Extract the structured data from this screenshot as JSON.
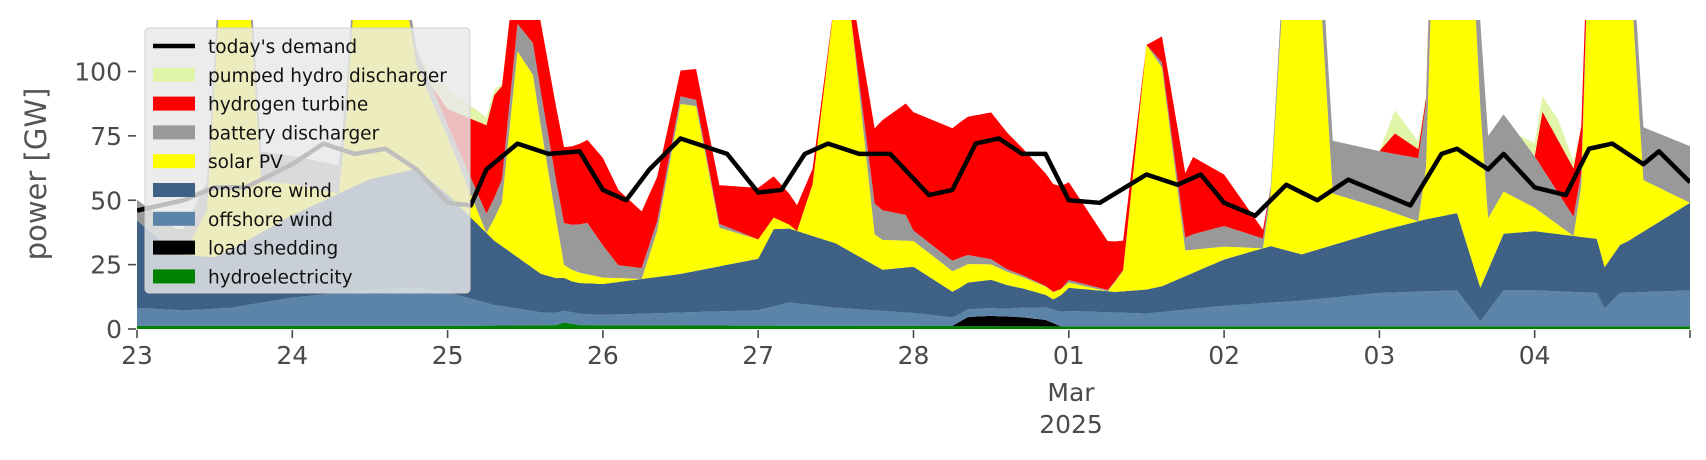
{
  "chart_data": {
    "type": "area",
    "ylabel": "power [GW]",
    "ylim": [
      0,
      120
    ],
    "yticks": [
      0,
      25,
      50,
      75,
      100
    ],
    "x_range_days": [
      "2025-02-23",
      "2025-03-05"
    ],
    "xticks": [
      {
        "day": 0,
        "label": "23"
      },
      {
        "day": 1,
        "label": "24"
      },
      {
        "day": 2,
        "label": "25"
      },
      {
        "day": 3,
        "label": "26"
      },
      {
        "day": 4,
        "label": "27"
      },
      {
        "day": 5,
        "label": "28"
      },
      {
        "day": 6,
        "label": "01"
      },
      {
        "day": 7,
        "label": "02"
      },
      {
        "day": 8,
        "label": "03"
      },
      {
        "day": 9,
        "label": "04"
      },
      {
        "day": 10,
        "label": ""
      }
    ],
    "xlabel_month": "Mar",
    "xlabel_year": "2025",
    "grid": false,
    "legend_position": "top-left",
    "series": [
      {
        "name": "hydroelectricity",
        "color": "#008000",
        "points": [
          [
            0,
            1.2
          ],
          [
            2,
            1.2
          ],
          [
            2.7,
            1.5
          ],
          [
            2.75,
            2.5
          ],
          [
            2.85,
            1.5
          ],
          [
            4,
            1.3
          ],
          [
            5,
            1.2
          ],
          [
            6,
            1.0
          ],
          [
            8,
            1.0
          ],
          [
            10,
            1.0
          ]
        ]
      },
      {
        "name": "load shedding",
        "color": "#000000",
        "points": [
          [
            0,
            0
          ],
          [
            5.25,
            0
          ],
          [
            5.35,
            3.5
          ],
          [
            5.5,
            4
          ],
          [
            5.7,
            3.5
          ],
          [
            5.85,
            2.5
          ],
          [
            5.95,
            0
          ],
          [
            10,
            0
          ]
        ]
      },
      {
        "name": "offshore wind",
        "color": "#5c84a8",
        "points": [
          [
            0,
            7
          ],
          [
            0.3,
            6
          ],
          [
            0.6,
            7
          ],
          [
            1,
            11
          ],
          [
            1.5,
            14
          ],
          [
            1.8,
            15
          ],
          [
            2,
            13
          ],
          [
            2.3,
            8
          ],
          [
            2.6,
            5
          ],
          [
            3,
            4
          ],
          [
            3.5,
            5
          ],
          [
            4,
            6
          ],
          [
            4.2,
            9
          ],
          [
            4.5,
            7
          ],
          [
            5,
            5
          ],
          [
            5.3,
            3
          ],
          [
            5.6,
            3
          ],
          [
            6,
            6
          ],
          [
            6.5,
            5
          ],
          [
            7,
            8
          ],
          [
            7.5,
            10
          ],
          [
            8,
            13
          ],
          [
            8.5,
            14
          ],
          [
            8.65,
            2
          ],
          [
            8.8,
            14
          ],
          [
            9,
            14
          ],
          [
            9.4,
            13
          ],
          [
            9.45,
            7
          ],
          [
            9.55,
            13
          ],
          [
            10,
            14
          ]
        ]
      },
      {
        "name": "onshore wind",
        "color": "#3e6185",
        "points": [
          [
            0,
            34
          ],
          [
            0.25,
            22
          ],
          [
            0.5,
            20
          ],
          [
            1,
            32
          ],
          [
            1.5,
            43
          ],
          [
            1.8,
            46
          ],
          [
            2,
            38
          ],
          [
            2.3,
            25
          ],
          [
            2.6,
            15
          ],
          [
            2.8,
            12
          ],
          [
            3,
            12
          ],
          [
            3.5,
            15
          ],
          [
            4,
            20
          ],
          [
            4.1,
            30
          ],
          [
            4.5,
            25
          ],
          [
            4.8,
            16
          ],
          [
            5,
            18
          ],
          [
            5.25,
            10
          ],
          [
            5.5,
            11
          ],
          [
            5.9,
            4
          ],
          [
            6,
            9
          ],
          [
            6.3,
            8
          ],
          [
            6.6,
            10
          ],
          [
            7,
            18
          ],
          [
            7.3,
            22
          ],
          [
            7.5,
            18
          ],
          [
            8,
            24
          ],
          [
            8.3,
            28
          ],
          [
            8.5,
            30
          ],
          [
            8.65,
            13
          ],
          [
            8.8,
            22
          ],
          [
            9,
            23
          ],
          [
            9.4,
            21
          ],
          [
            9.45,
            16
          ],
          [
            9.6,
            20
          ],
          [
            10,
            34
          ]
        ]
      },
      {
        "name": "solar PV",
        "color": "#ffff00",
        "points": [
          [
            0,
            0
          ],
          [
            0.3,
            0
          ],
          [
            0.45,
            18
          ],
          [
            0.55,
            118
          ],
          [
            0.7,
            118
          ],
          [
            0.8,
            20
          ],
          [
            1.3,
            0
          ],
          [
            1.35,
            30
          ],
          [
            1.45,
            120
          ],
          [
            1.6,
            118
          ],
          [
            1.8,
            40
          ],
          [
            2.25,
            0
          ],
          [
            2.35,
            17
          ],
          [
            2.45,
            80
          ],
          [
            2.55,
            75
          ],
          [
            2.75,
            5
          ],
          [
            3.25,
            0
          ],
          [
            3.35,
            18
          ],
          [
            3.5,
            66
          ],
          [
            3.6,
            64
          ],
          [
            3.75,
            15
          ],
          [
            4.25,
            0
          ],
          [
            4.35,
            20
          ],
          [
            4.5,
            98
          ],
          [
            4.6,
            90
          ],
          [
            4.75,
            12
          ],
          [
            6.25,
            0
          ],
          [
            6.35,
            8
          ],
          [
            6.5,
            95
          ],
          [
            6.6,
            85
          ],
          [
            6.75,
            10
          ],
          [
            7.25,
            0
          ],
          [
            7.3,
            20
          ],
          [
            7.4,
            120
          ],
          [
            7.6,
            120
          ],
          [
            7.7,
            20
          ],
          [
            8.25,
            0
          ],
          [
            8.3,
            20
          ],
          [
            8.35,
            120
          ],
          [
            8.6,
            120
          ],
          [
            8.7,
            20
          ],
          [
            9.25,
            0
          ],
          [
            9.3,
            20
          ],
          [
            9.35,
            120
          ],
          [
            9.6,
            120
          ],
          [
            9.7,
            20
          ],
          [
            10,
            0
          ]
        ]
      },
      {
        "name": "battery discharger",
        "color": "#999999",
        "points": [
          [
            0,
            8
          ],
          [
            0.3,
            10
          ],
          [
            0.6,
            12
          ],
          [
            1,
            11
          ],
          [
            1.3,
            11
          ],
          [
            1.6,
            8
          ],
          [
            2,
            5
          ],
          [
            2.3,
            8
          ],
          [
            2.7,
            15
          ],
          [
            2.9,
            20
          ],
          [
            3.1,
            5
          ],
          [
            3.5,
            3
          ],
          [
            4,
            0
          ],
          [
            4.6,
            0
          ],
          [
            4.75,
            12
          ],
          [
            4.95,
            10
          ],
          [
            5,
            4
          ],
          [
            5.3,
            4
          ],
          [
            5.6,
            1
          ],
          [
            5.95,
            0
          ],
          [
            6,
            1
          ],
          [
            6.5,
            0
          ],
          [
            6.8,
            6
          ],
          [
            7,
            8
          ],
          [
            7.3,
            3
          ],
          [
            7.6,
            20
          ],
          [
            8,
            22
          ],
          [
            8.3,
            25
          ],
          [
            8.4,
            22
          ],
          [
            8.6,
            34
          ],
          [
            8.8,
            30
          ],
          [
            9,
            20
          ],
          [
            9.4,
            0
          ],
          [
            9.6,
            20
          ],
          [
            10,
            22
          ]
        ]
      },
      {
        "name": "hydrogen turbine",
        "color": "#ff0000",
        "points": [
          [
            0,
            0
          ],
          [
            1.9,
            0
          ],
          [
            2,
            6
          ],
          [
            2.3,
            40
          ],
          [
            2.5,
            25
          ],
          [
            3,
            34
          ],
          [
            3.5,
            10
          ],
          [
            4,
            20
          ],
          [
            4.5,
            0
          ],
          [
            4.8,
            35
          ],
          [
            5,
            46
          ],
          [
            5.5,
            57
          ],
          [
            6,
            38
          ],
          [
            6.5,
            0
          ],
          [
            6.8,
            30
          ],
          [
            7,
            20
          ],
          [
            7.3,
            0
          ],
          [
            8,
            0
          ],
          [
            8.1,
            8
          ],
          [
            8.3,
            2
          ],
          [
            8.6,
            0
          ],
          [
            9,
            0
          ],
          [
            9.05,
            22
          ],
          [
            9.3,
            18
          ],
          [
            9.4,
            0
          ],
          [
            10,
            0
          ]
        ]
      },
      {
        "name": "pumped hydro discharger",
        "color": "#e0f5a8",
        "points": [
          [
            0,
            0
          ],
          [
            1.8,
            0
          ],
          [
            2,
            8
          ],
          [
            2.2,
            4
          ],
          [
            2.4,
            0
          ],
          [
            8,
            0
          ],
          [
            8.1,
            9
          ],
          [
            8.3,
            1
          ],
          [
            8.5,
            0
          ],
          [
            8.9,
            0
          ],
          [
            9,
            5
          ],
          [
            9.15,
            8
          ],
          [
            9.3,
            0
          ],
          [
            10,
            0
          ]
        ]
      }
    ],
    "demand": {
      "name": "today's demand",
      "color": "#000000",
      "points": [
        [
          0,
          46
        ],
        [
          0.3,
          50
        ],
        [
          0.5,
          55
        ],
        [
          0.7,
          55
        ],
        [
          1,
          64
        ],
        [
          1.2,
          72
        ],
        [
          1.4,
          68
        ],
        [
          1.6,
          70
        ],
        [
          1.8,
          62
        ],
        [
          2,
          49
        ],
        [
          2.15,
          48
        ],
        [
          2.25,
          62
        ],
        [
          2.45,
          72
        ],
        [
          2.65,
          68
        ],
        [
          2.85,
          69
        ],
        [
          3,
          54
        ],
        [
          3.15,
          50
        ],
        [
          3.3,
          62
        ],
        [
          3.5,
          74
        ],
        [
          3.8,
          68
        ],
        [
          4,
          53
        ],
        [
          4.15,
          54
        ],
        [
          4.3,
          68
        ],
        [
          4.45,
          72
        ],
        [
          4.65,
          68
        ],
        [
          4.85,
          68
        ],
        [
          5.1,
          52
        ],
        [
          5.25,
          54
        ],
        [
          5.4,
          72
        ],
        [
          5.55,
          74
        ],
        [
          5.7,
          68
        ],
        [
          5.85,
          68
        ],
        [
          6,
          50
        ],
        [
          6.2,
          49
        ],
        [
          6.5,
          60
        ],
        [
          6.7,
          56
        ],
        [
          6.85,
          60
        ],
        [
          7,
          49
        ],
        [
          7.2,
          44
        ],
        [
          7.4,
          56
        ],
        [
          7.6,
          50
        ],
        [
          7.8,
          58
        ],
        [
          8,
          53
        ],
        [
          8.2,
          48
        ],
        [
          8.4,
          68
        ],
        [
          8.5,
          70
        ],
        [
          8.7,
          62
        ],
        [
          8.8,
          68
        ],
        [
          9,
          55
        ],
        [
          9.2,
          52
        ],
        [
          9.35,
          70
        ],
        [
          9.5,
          72
        ],
        [
          9.7,
          64
        ],
        [
          9.8,
          69
        ],
        [
          10,
          57
        ]
      ]
    },
    "legend_entries": [
      "today's demand",
      "pumped hydro discharger",
      "hydrogen turbine",
      "battery discharger",
      "solar PV",
      "onshore wind",
      "offshore wind",
      "load shedding",
      "hydroelectricity"
    ],
    "legend_colors": [
      "#000000",
      "#e0f5a8",
      "#ff0000",
      "#999999",
      "#ffff00",
      "#3e6185",
      "#5c84a8",
      "#000000",
      "#008000"
    ]
  }
}
